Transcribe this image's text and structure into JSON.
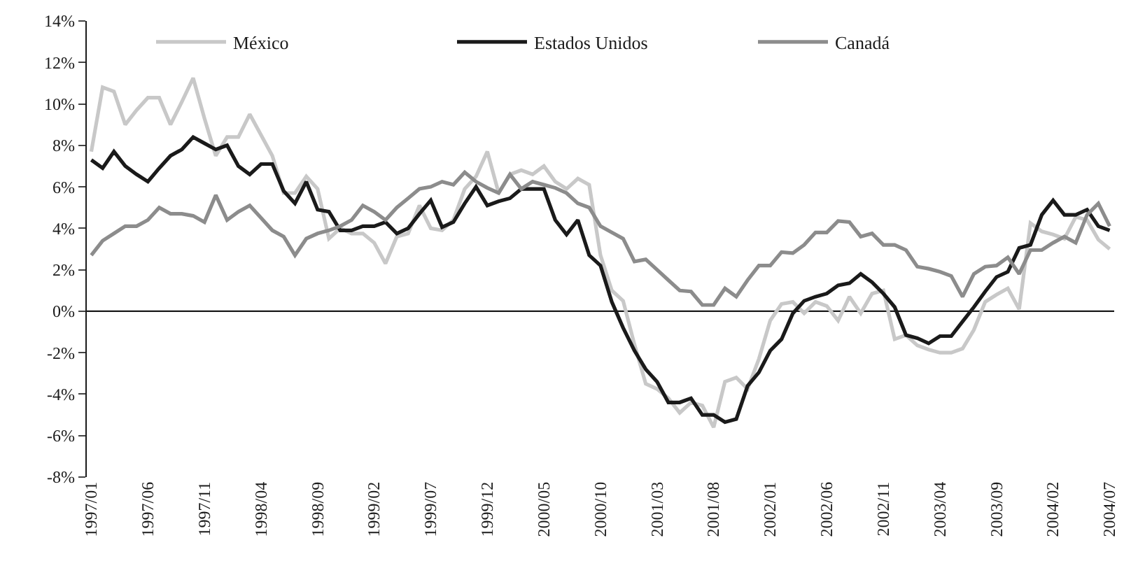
{
  "chart_data": {
    "type": "line",
    "categories": [
      "1997/01",
      null,
      null,
      null,
      null,
      "1997/06",
      null,
      null,
      null,
      null,
      "1997/11",
      null,
      null,
      null,
      null,
      "1998/04",
      null,
      null,
      null,
      null,
      "1998/09",
      null,
      null,
      null,
      null,
      "1999/02",
      null,
      null,
      null,
      null,
      "1999/07",
      null,
      null,
      null,
      null,
      "1999/12",
      null,
      null,
      null,
      null,
      "2000/05",
      null,
      null,
      null,
      null,
      "2000/10",
      null,
      null,
      null,
      null,
      "2001/03",
      null,
      null,
      null,
      null,
      "2001/08",
      null,
      null,
      null,
      null,
      "2002/01",
      null,
      null,
      null,
      null,
      "2002/06",
      null,
      null,
      null,
      null,
      "2002/11",
      null,
      null,
      null,
      null,
      "2003/04",
      null,
      null,
      null,
      null,
      "2003/09",
      null,
      null,
      null,
      null,
      "2004/02",
      null,
      null,
      null,
      null,
      "2004/07"
    ],
    "series": [
      {
        "name": "México",
        "color": "#c8c8c8",
        "values": [
          7.7,
          10.8,
          10.6,
          9.0,
          9.7,
          10.3,
          10.3,
          9.0,
          10.1,
          11.25,
          9.3,
          7.5,
          8.4,
          8.4,
          9.5,
          8.5,
          7.5,
          5.7,
          5.7,
          6.5,
          5.9,
          3.5,
          4.0,
          3.75,
          3.75,
          3.3,
          2.3,
          3.6,
          3.75,
          5.1,
          4.0,
          3.9,
          4.4,
          5.9,
          6.5,
          7.7,
          5.7,
          6.6,
          6.8,
          6.6,
          7.0,
          6.25,
          5.9,
          6.4,
          6.1,
          2.7,
          1.0,
          0.5,
          -1.6,
          -3.5,
          -3.75,
          -4.2,
          -4.9,
          -4.4,
          -4.55,
          -5.6,
          -3.4,
          -3.2,
          -3.75,
          -2.3,
          -0.45,
          0.35,
          0.45,
          -0.1,
          0.45,
          0.25,
          -0.45,
          0.7,
          -0.1,
          0.85,
          1.0,
          -1.35,
          -1.15,
          -1.65,
          -1.85,
          -2.0,
          -2.0,
          -1.8,
          -0.9,
          0.45,
          0.8,
          1.1,
          0.1,
          4.25,
          3.85,
          3.7,
          3.5,
          4.55,
          4.4,
          3.45,
          3.0
        ]
      },
      {
        "name": "Estados Unidos",
        "color": "#1a1a1a",
        "values": [
          7.3,
          6.9,
          7.7,
          7.0,
          6.6,
          6.25,
          6.9,
          7.5,
          7.8,
          8.4,
          8.1,
          7.8,
          8.0,
          7.0,
          6.6,
          7.1,
          7.1,
          5.8,
          5.2,
          6.25,
          4.9,
          4.8,
          3.9,
          3.9,
          4.1,
          4.1,
          4.3,
          3.75,
          4.0,
          4.7,
          5.35,
          4.05,
          4.3,
          5.2,
          6.0,
          5.1,
          5.3,
          5.45,
          5.9,
          5.9,
          5.9,
          4.4,
          3.7,
          4.4,
          2.7,
          2.2,
          0.45,
          -0.8,
          -1.9,
          -2.8,
          -3.4,
          -4.4,
          -4.4,
          -4.2,
          -5.0,
          -5.0,
          -5.35,
          -5.2,
          -3.6,
          -2.95,
          -1.9,
          -1.35,
          -0.1,
          0.5,
          0.7,
          0.85,
          1.25,
          1.35,
          1.8,
          1.4,
          0.85,
          0.2,
          -1.15,
          -1.3,
          -1.55,
          -1.2,
          -1.2,
          -0.5,
          0.2,
          0.95,
          1.65,
          1.9,
          3.05,
          3.2,
          4.65,
          5.35,
          4.65,
          4.65,
          4.9,
          4.1,
          3.9
        ]
      },
      {
        "name": "Canadá",
        "color": "#8c8c8c",
        "values": [
          2.7,
          3.4,
          3.75,
          4.1,
          4.1,
          4.4,
          5.0,
          4.7,
          4.7,
          4.6,
          4.3,
          5.6,
          4.4,
          4.8,
          5.1,
          4.5,
          3.9,
          3.6,
          2.7,
          3.5,
          3.75,
          3.9,
          4.1,
          4.4,
          5.1,
          4.8,
          4.4,
          5.0,
          5.45,
          5.9,
          6.0,
          6.25,
          6.1,
          6.7,
          6.25,
          5.95,
          5.7,
          6.6,
          5.9,
          6.25,
          6.1,
          5.95,
          5.7,
          5.2,
          5.0,
          4.1,
          3.8,
          3.5,
          2.4,
          2.5,
          2.0,
          1.5,
          1.0,
          0.95,
          0.3,
          0.3,
          1.1,
          0.7,
          1.5,
          2.2,
          2.2,
          2.85,
          2.8,
          3.2,
          3.8,
          3.8,
          4.35,
          4.3,
          3.6,
          3.75,
          3.2,
          3.2,
          2.95,
          2.15,
          2.05,
          1.9,
          1.7,
          0.7,
          1.8,
          2.15,
          2.2,
          2.6,
          1.8,
          2.95,
          2.95,
          3.3,
          3.6,
          3.3,
          4.65,
          5.2,
          4.1
        ]
      }
    ],
    "ylim": [
      -8,
      14
    ],
    "yticks": [
      {
        "value": -8,
        "label": "-8%"
      },
      {
        "value": -6,
        "label": "-6%"
      },
      {
        "value": -4,
        "label": "-4%"
      },
      {
        "value": -2,
        "label": "-2%"
      },
      {
        "value": 0,
        "label": "0%"
      },
      {
        "value": 2,
        "label": "2%"
      },
      {
        "value": 4,
        "label": "4%"
      },
      {
        "value": 6,
        "label": "6%"
      },
      {
        "value": 8,
        "label": "8%"
      },
      {
        "value": 10,
        "label": "10%"
      },
      {
        "value": 12,
        "label": "12%"
      },
      {
        "value": 14,
        "label": "14%"
      }
    ],
    "ref_lines": [
      {
        "axis": "y",
        "value": 0,
        "color": "#1a1a1a",
        "line_style": "solid"
      }
    ],
    "grid": false,
    "legend": "top",
    "marker": "none",
    "line_style": "solid"
  }
}
